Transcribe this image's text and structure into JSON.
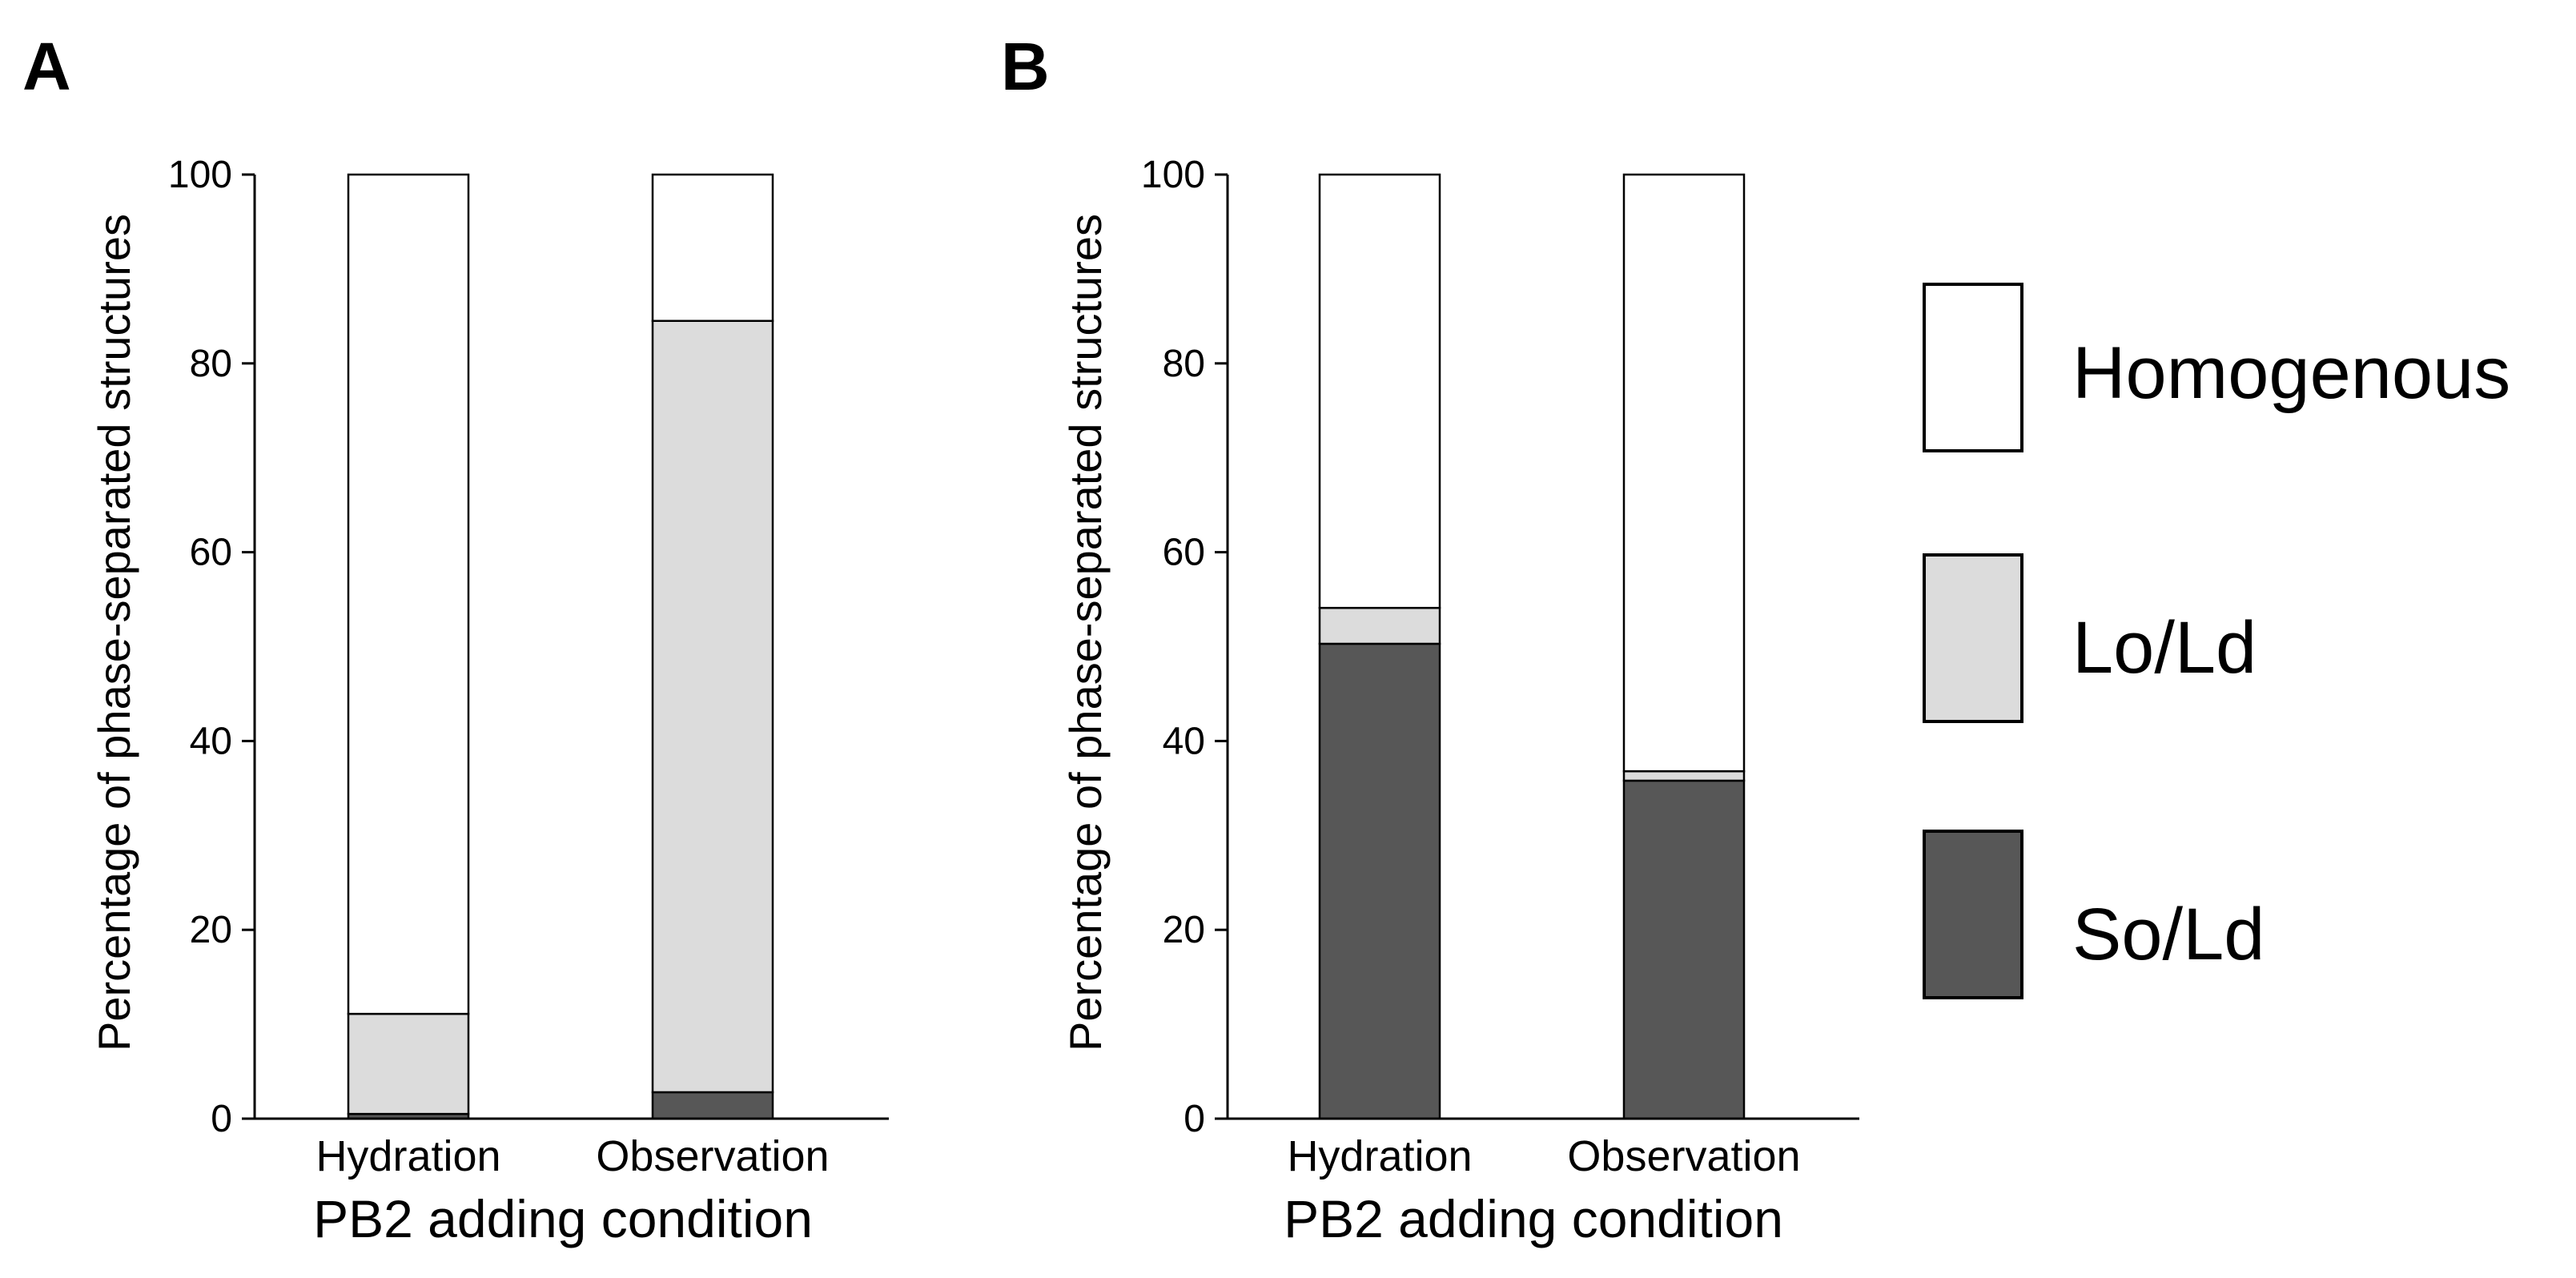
{
  "colors": {
    "So/Ld": "#575757",
    "Lo/Ld": "#dcdcdc",
    "Homogenous": "#ffffff"
  },
  "legend": [
    "Homogenous",
    "Lo/Ld",
    "So/Ld"
  ],
  "chart_data": [
    {
      "panel": "A",
      "type": "bar",
      "stacked": true,
      "xlabel": "PB2 adding condition",
      "ylabel": "Percentage of phase-separated structures",
      "ylim": [
        0,
        100
      ],
      "yticks": [
        0,
        20,
        40,
        60,
        80,
        100
      ],
      "categories": [
        "Hydration",
        "Observation"
      ],
      "series": [
        {
          "name": "So/Ld",
          "values": [
            0.5,
            2.8
          ]
        },
        {
          "name": "Lo/Ld",
          "values": [
            10.6,
            81.7
          ]
        },
        {
          "name": "Homogenous",
          "values": [
            88.9,
            15.5
          ]
        }
      ]
    },
    {
      "panel": "B",
      "type": "bar",
      "stacked": true,
      "xlabel": "PB2 adding condition",
      "ylabel": "Percentage of phase-separated structures",
      "ylim": [
        0,
        100
      ],
      "yticks": [
        0,
        20,
        40,
        60,
        80,
        100
      ],
      "categories": [
        "Hydration",
        "Observation"
      ],
      "series": [
        {
          "name": "So/Ld",
          "values": [
            50.3,
            35.8
          ]
        },
        {
          "name": "Lo/Ld",
          "values": [
            3.8,
            1.0
          ]
        },
        {
          "name": "Homogenous",
          "values": [
            45.9,
            63.2
          ]
        }
      ]
    }
  ]
}
